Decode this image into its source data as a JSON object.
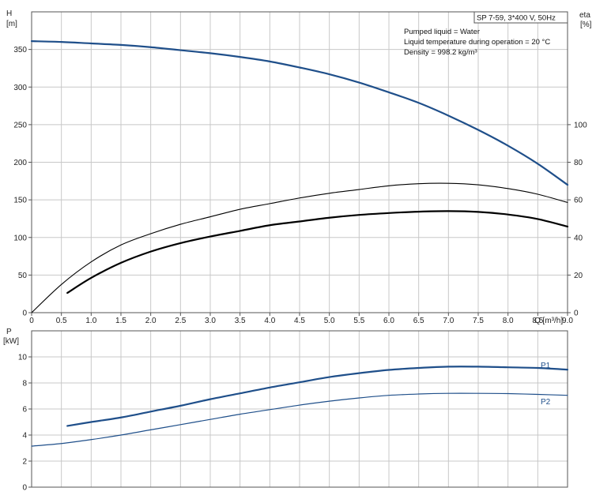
{
  "chart_data": [
    {
      "type": "line",
      "pump_label": "SP 7-59, 3*400 V, 50Hz",
      "info_lines": [
        "Pumped liquid = Water",
        "Liquid temperature during operation = 20 °C",
        "Density = 998.2 kg/m³"
      ],
      "ylabel_left": [
        "H",
        "[m]"
      ],
      "ylabel_right": [
        "eta",
        "[%]"
      ],
      "xlabel": "Q [m³/h]",
      "xlim": [
        0,
        9.0
      ],
      "xticks": [
        "0",
        "0.5",
        "1.0",
        "1.5",
        "2.0",
        "2.5",
        "3.0",
        "3.5",
        "4.0",
        "4.5",
        "5.0",
        "5.5",
        "6.0",
        "6.5",
        "7.0",
        "7.5",
        "8.0",
        "8.5",
        "9.0"
      ],
      "ylim_left": [
        0,
        400
      ],
      "yticks_left": [
        "0",
        "50",
        "100",
        "150",
        "200",
        "250",
        "300",
        "350"
      ],
      "ylim_right": [
        0,
        160
      ],
      "yticks_right": [
        "0",
        "20",
        "40",
        "60",
        "80",
        "100"
      ],
      "grid": true,
      "series": [
        {
          "axis": "left",
          "color": "#1f4f8a",
          "x": [
            0,
            0.5,
            1.0,
            1.5,
            2.0,
            2.5,
            3.0,
            3.5,
            4.0,
            4.5,
            5.0,
            5.5,
            6.0,
            6.5,
            7.0,
            7.5,
            8.0,
            8.5,
            9.0
          ],
          "y": [
            361,
            360,
            358,
            356,
            353,
            349,
            345,
            340,
            334,
            326,
            317,
            306,
            293,
            279,
            262,
            243,
            222,
            198,
            170
          ]
        },
        {
          "axis": "right",
          "color": "#000000",
          "x": [
            0,
            0.5,
            1.0,
            1.5,
            2.0,
            2.5,
            3.0,
            3.5,
            4.0,
            4.5,
            5.0,
            5.5,
            6.0,
            6.5,
            7.0,
            7.5,
            8.0,
            8.5,
            9.0
          ],
          "y": [
            0,
            15,
            27,
            36,
            42,
            47,
            51,
            55,
            58,
            61,
            63.5,
            65.5,
            67.5,
            68.6,
            68.8,
            68,
            66,
            63,
            58.6
          ]
        },
        {
          "axis": "right",
          "color": "#000000",
          "x": [
            0.6,
            1.0,
            1.5,
            2.0,
            2.5,
            3.0,
            3.5,
            4.0,
            4.5,
            5.0,
            5.5,
            6.0,
            6.5,
            7.0,
            7.5,
            8.0,
            8.5,
            9.0
          ],
          "y": [
            10.5,
            18.5,
            26.5,
            32.5,
            37,
            40.5,
            43.5,
            46.5,
            48.5,
            50.5,
            52,
            53,
            53.7,
            54,
            53.6,
            52.2,
            49.8,
            45.8
          ]
        }
      ]
    },
    {
      "type": "line",
      "ylabel": [
        "P",
        "[kW]"
      ],
      "xlim": [
        0,
        9.0
      ],
      "ylim": [
        0,
        12
      ],
      "yticks": [
        "0",
        "2",
        "4",
        "6",
        "8",
        "10"
      ],
      "grid": true,
      "series": [
        {
          "name": "P1",
          "color": "#1f4f8a",
          "x": [
            0.6,
            1.0,
            1.5,
            2.0,
            2.5,
            3.0,
            3.5,
            4.0,
            4.5,
            5.0,
            5.5,
            6.0,
            6.5,
            7.0,
            7.5,
            8.0,
            8.5,
            9.0
          ],
          "y": [
            4.7,
            5.0,
            5.35,
            5.8,
            6.25,
            6.75,
            7.2,
            7.65,
            8.05,
            8.45,
            8.75,
            9.0,
            9.15,
            9.25,
            9.25,
            9.2,
            9.15,
            9.02
          ]
        },
        {
          "name": "P2",
          "color": "#1f4f8a",
          "x": [
            0,
            0.5,
            1.0,
            1.5,
            2.0,
            2.5,
            3.0,
            3.5,
            4.0,
            4.5,
            5.0,
            5.5,
            6.0,
            6.5,
            7.0,
            7.5,
            8.0,
            8.5,
            9.0
          ],
          "y": [
            3.15,
            3.35,
            3.65,
            4.0,
            4.4,
            4.8,
            5.2,
            5.6,
            5.95,
            6.3,
            6.6,
            6.85,
            7.05,
            7.15,
            7.2,
            7.2,
            7.18,
            7.12,
            7.05
          ]
        }
      ]
    }
  ]
}
